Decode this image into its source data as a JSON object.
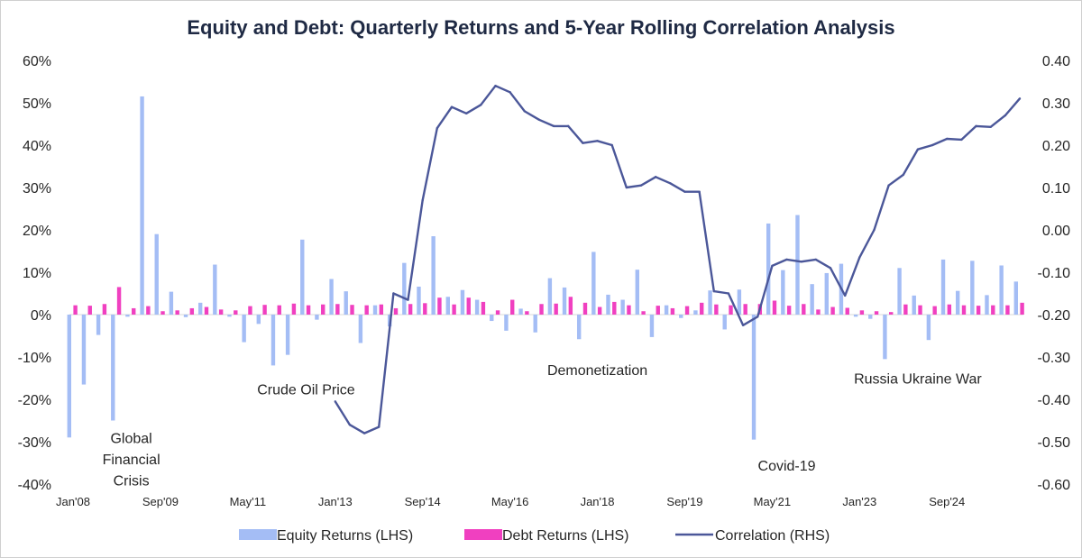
{
  "chart_data": {
    "type": "bar",
    "title": "Equity and Debt: Quarterly Returns and 5-Year Rolling Correlation Analysis",
    "xlabel": "",
    "ylabel": "",
    "y_left": {
      "lim": [
        -0.4,
        0.6
      ],
      "ticks": [
        -0.4,
        -0.3,
        -0.2,
        -0.1,
        0.0,
        0.1,
        0.2,
        0.3,
        0.4,
        0.5,
        0.6
      ],
      "tick_labels": [
        "-40%",
        "-30%",
        "-20%",
        "-10%",
        "0%",
        "10%",
        "20%",
        "30%",
        "40%",
        "50%",
        "60%"
      ]
    },
    "y_right": {
      "lim": [
        -0.6,
        0.4
      ],
      "ticks": [
        -0.6,
        -0.5,
        -0.4,
        -0.3,
        -0.2,
        -0.1,
        0.0,
        0.1,
        0.2,
        0.3,
        0.4
      ],
      "tick_labels": [
        "-0.60",
        "-0.50",
        "-0.40",
        "-0.30",
        "-0.20",
        "-0.10",
        "0.00",
        "0.10",
        "0.20",
        "0.30",
        "0.40"
      ]
    },
    "x_tick_labels": [
      {
        "label": "Jan'08",
        "index": 0
      },
      {
        "label": "Sep'09",
        "index": 6
      },
      {
        "label": "May'11",
        "index": 12
      },
      {
        "label": "Jan'13",
        "index": 18
      },
      {
        "label": "Sep'14",
        "index": 24
      },
      {
        "label": "May'16",
        "index": 30
      },
      {
        "label": "Jan'18",
        "index": 36
      },
      {
        "label": "Sep'19",
        "index": 42
      },
      {
        "label": "May'21",
        "index": 48
      },
      {
        "label": "Jan'23",
        "index": 54
      },
      {
        "label": "Sep'24",
        "index": 60
      }
    ],
    "series": [
      {
        "name": "Equity Returns (LHS)",
        "kind": "bar",
        "axis": "left",
        "color": "#a4bdf5",
        "values": [
          -0.29,
          -0.165,
          -0.048,
          -0.25,
          -0.005,
          0.515,
          0.19,
          0.054,
          -0.006,
          0.028,
          0.118,
          -0.005,
          -0.065,
          -0.022,
          -0.12,
          -0.095,
          0.177,
          -0.012,
          0.084,
          0.055,
          -0.067,
          0.022,
          -0.028,
          0.122,
          0.066,
          0.185,
          0.042,
          0.058,
          0.035,
          -0.015,
          -0.038,
          0.014,
          -0.042,
          0.086,
          0.064,
          -0.058,
          0.148,
          0.047,
          0.035,
          0.106,
          -0.053,
          0.022,
          -0.008,
          0.01,
          0.057,
          -0.035,
          0.059,
          -0.295,
          0.215,
          0.105,
          0.235,
          0.072,
          0.098,
          0.12,
          -0.005,
          -0.01,
          -0.105,
          0.11,
          0.045,
          -0.06,
          0.13,
          0.056,
          0.127,
          0.046,
          0.116,
          0.078
        ]
      },
      {
        "name": "Debt Returns (LHS)",
        "kind": "bar",
        "axis": "left",
        "color": "#f040c0",
        "values": [
          0.022,
          0.021,
          0.025,
          0.065,
          0.015,
          0.02,
          0.008,
          0.01,
          0.015,
          0.018,
          0.012,
          0.01,
          0.02,
          0.023,
          0.022,
          0.026,
          0.022,
          0.024,
          0.025,
          0.023,
          0.022,
          0.024,
          0.015,
          0.025,
          0.027,
          0.04,
          0.024,
          0.04,
          0.03,
          0.01,
          0.035,
          0.008,
          0.025,
          0.026,
          0.042,
          0.028,
          0.018,
          0.03,
          0.022,
          0.008,
          0.021,
          0.015,
          0.02,
          0.028,
          0.024,
          0.022,
          0.025,
          0.025,
          0.033,
          0.021,
          0.025,
          0.012,
          0.018,
          0.016,
          0.01,
          0.008,
          0.006,
          0.024,
          0.022,
          0.02,
          0.024,
          0.022,
          0.021,
          0.022,
          0.022,
          0.028
        ]
      },
      {
        "name": "Correlation (RHS)",
        "kind": "line",
        "axis": "right",
        "color": "#4b5799",
        "start_index": 18,
        "values": [
          -0.405,
          -0.46,
          -0.48,
          -0.465,
          -0.15,
          -0.165,
          0.07,
          0.24,
          0.29,
          0.275,
          0.295,
          0.34,
          0.325,
          0.28,
          0.26,
          0.245,
          0.245,
          0.205,
          0.21,
          0.2,
          0.1,
          0.105,
          0.125,
          0.11,
          0.09,
          0.09,
          -0.145,
          -0.15,
          -0.225,
          -0.205,
          -0.085,
          -0.07,
          -0.075,
          -0.07,
          -0.09,
          -0.155,
          -0.065,
          0.0,
          0.105,
          0.13,
          0.19,
          0.2,
          0.215,
          0.213,
          0.245,
          0.243,
          0.27,
          0.31
        ]
      }
    ],
    "annotations": [
      {
        "text": "Global",
        "index": 4,
        "value": -0.29
      },
      {
        "text": "Financial",
        "index": 4,
        "value": -0.34
      },
      {
        "text": "Crisis",
        "index": 4,
        "value": -0.39
      },
      {
        "text": "Crude Oil Price",
        "index": 16,
        "value": -0.175
      },
      {
        "text": "Demonetization",
        "index": 36,
        "value": -0.13
      },
      {
        "text": "Covid-19",
        "index": 49,
        "value": -0.355
      },
      {
        "text": "Russia Ukraine War",
        "index": 58,
        "value": -0.15
      }
    ],
    "legend": {
      "position": "bottom",
      "items": [
        "Equity Returns (LHS)",
        "Debt Returns (LHS)",
        "Correlation (RHS)"
      ]
    },
    "grid": false
  }
}
